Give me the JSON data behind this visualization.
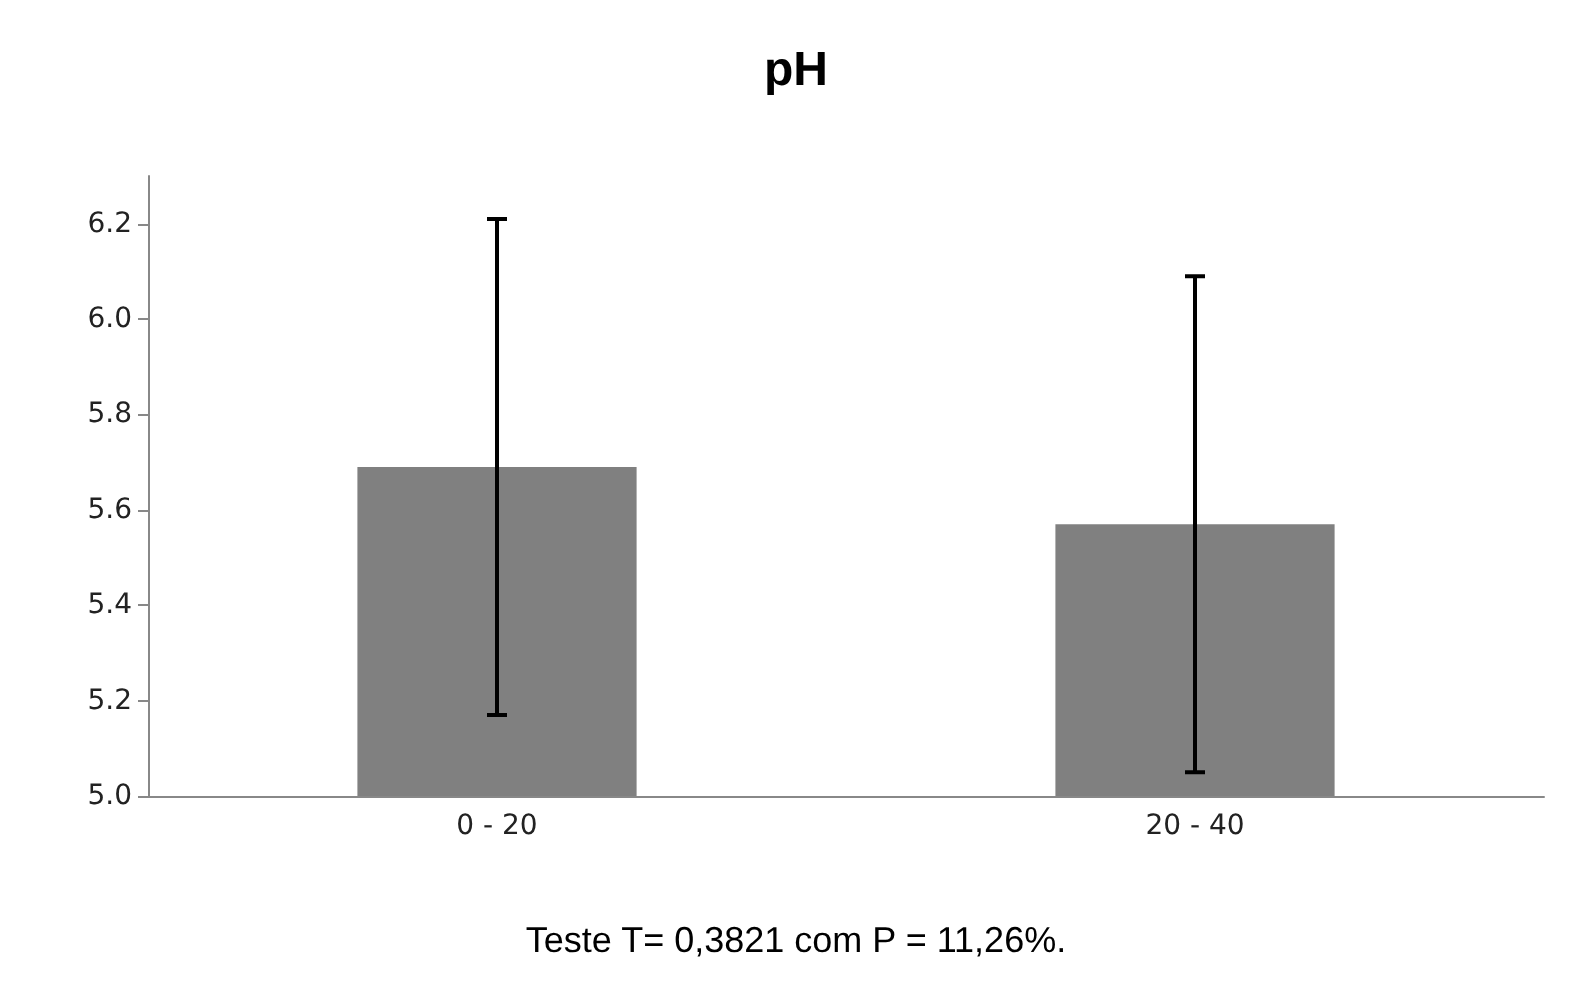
{
  "chart_data": {
    "type": "bar",
    "title": "pH",
    "categories": [
      "0 - 20",
      "20 - 40"
    ],
    "values": [
      5.69,
      5.57
    ],
    "color": "#808080",
    "errors": [
      0.52,
      0.52
    ],
    "ylim": [
      5.0,
      6.3
    ],
    "yticks": [
      {
        "value": 5.0,
        "label": "5.0"
      },
      5.2,
      5.4,
      5.6,
      5.8,
      {
        "value": 6.0,
        "label": "6.0"
      },
      6.2
    ],
    "grid": false,
    "annotations": [
      "Teste T= 0,3821 com P = 11,26%."
    ]
  }
}
